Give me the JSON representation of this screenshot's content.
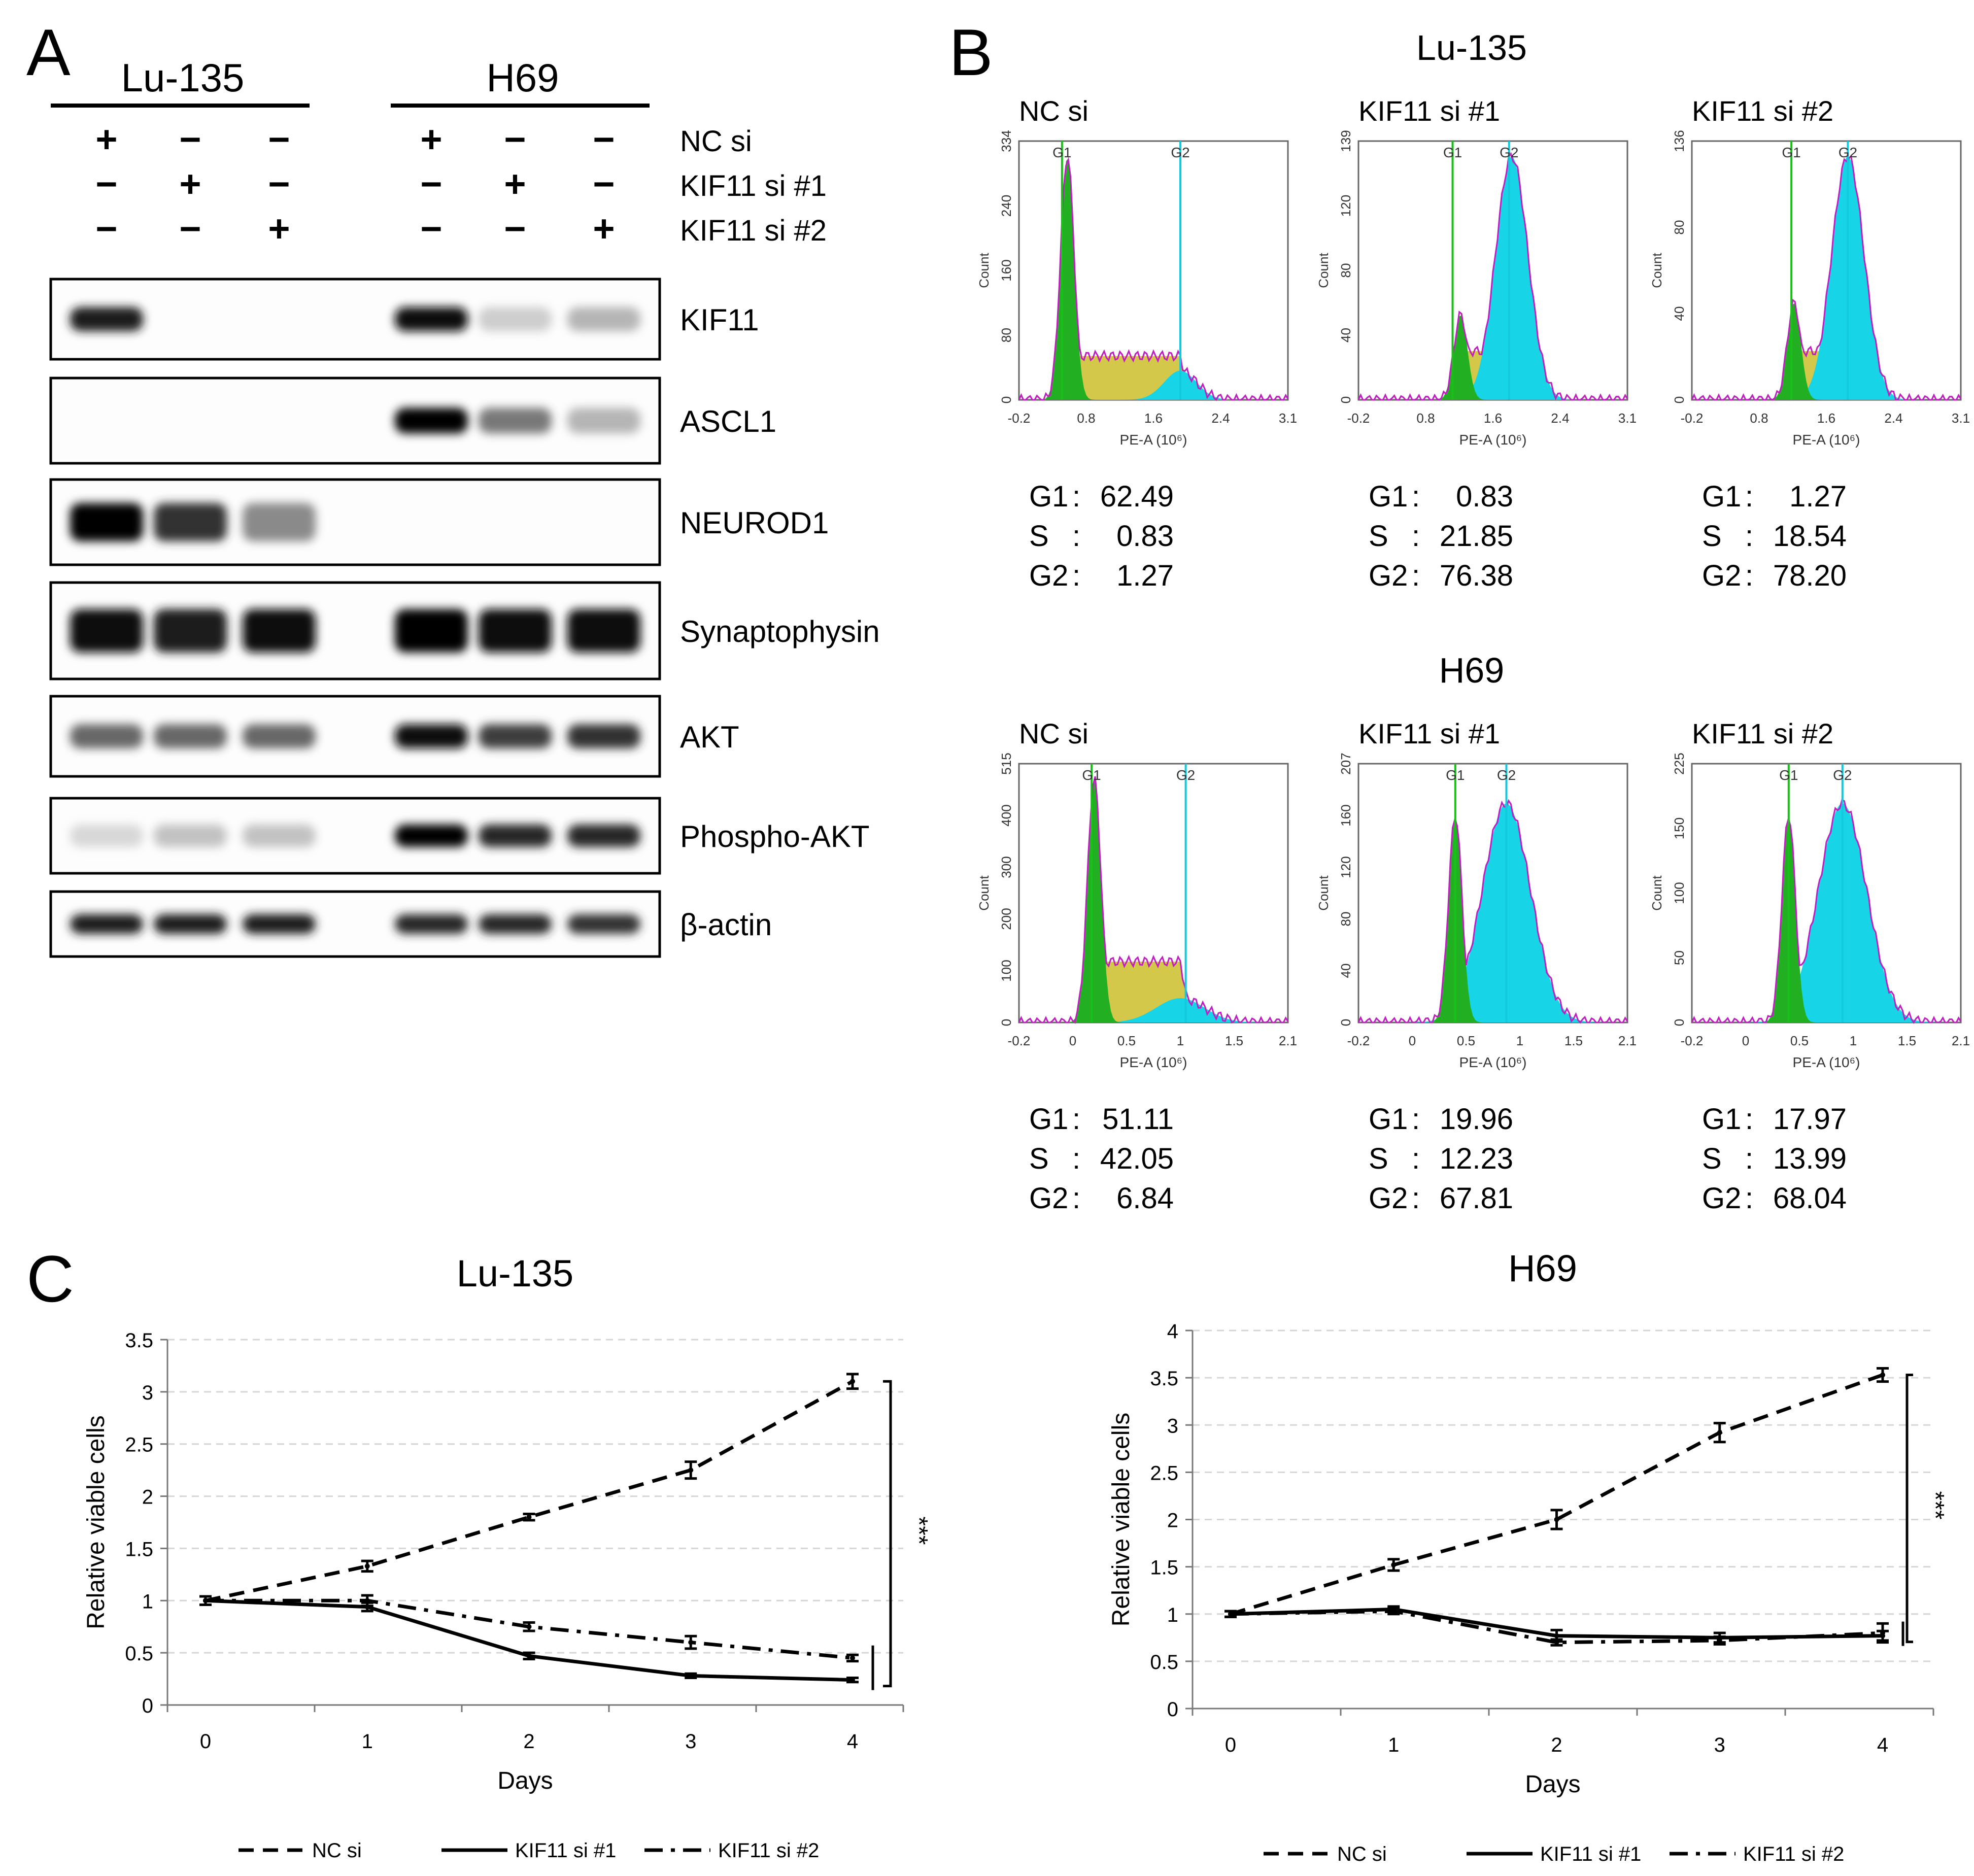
{
  "panelA": {
    "letter": "A",
    "cell_lines": [
      "Lu-135",
      "H69"
    ],
    "treatments": [
      {
        "label": "NC si",
        "signs": [
          "+",
          "−",
          "−",
          "+",
          "−",
          "−"
        ]
      },
      {
        "label": "KIF11 si #1",
        "signs": [
          "−",
          "+",
          "−",
          "−",
          "+",
          "−"
        ]
      },
      {
        "label": "KIF11 si #2",
        "signs": [
          "−",
          "−",
          "+",
          "−",
          "−",
          "+"
        ]
      }
    ],
    "blots": [
      {
        "label": "KIF11",
        "intensity": [
          0.9,
          0.0,
          0.0,
          0.95,
          0.25,
          0.35
        ]
      },
      {
        "label": "ASCL1",
        "intensity": [
          0.0,
          0.0,
          0.0,
          1.0,
          0.55,
          0.35
        ]
      },
      {
        "label": "NEUROD1",
        "intensity": [
          1.0,
          0.8,
          0.5,
          0.0,
          0.0,
          0.0
        ]
      },
      {
        "label": "Synaptophysin",
        "intensity": [
          0.95,
          0.9,
          0.95,
          1.0,
          0.95,
          0.95
        ]
      },
      {
        "label": "AKT",
        "intensity": [
          0.6,
          0.6,
          0.6,
          0.95,
          0.75,
          0.8
        ]
      },
      {
        "label": "Phospho-AKT",
        "intensity": [
          0.2,
          0.3,
          0.3,
          1.0,
          0.85,
          0.85
        ]
      },
      {
        "label": "β-actin",
        "intensity": [
          0.9,
          0.9,
          0.9,
          0.85,
          0.85,
          0.8
        ]
      }
    ]
  },
  "panelB": {
    "letter": "B",
    "rows": [
      {
        "title": "Lu-135",
        "xticks": [
          "-0.2",
          "0.8",
          "1.6",
          "2.4",
          "3.1"
        ],
        "xaxis_label": "PE-A (10⁶)",
        "yaxis_label": "Count",
        "hists": [
          {
            "title": "NC si",
            "ymax": "334",
            "yticks": [
              "0",
              "80",
              "160",
              "240",
              "334"
            ],
            "g1": "G1",
            "g2": "G2",
            "stats": {
              "G1": "62.49",
              "S": "0.83",
              "G2": "1.27"
            }
          },
          {
            "title": "KIF11 si #1",
            "ymax": "139",
            "yticks": [
              "0",
              "40",
              "80",
              "120",
              "139"
            ],
            "g1": "G1",
            "g2": "G2",
            "stats": {
              "G1": "0.83",
              "S": "21.85",
              "G2": "76.38"
            }
          },
          {
            "title": "KIF11 si #2",
            "ymax": "136",
            "yticks": [
              "0",
              "40",
              "80",
              "136"
            ],
            "g1": "G1",
            "g2": "G2",
            "stats": {
              "G1": "1.27",
              "S": "18.54",
              "G2": "78.20"
            }
          }
        ]
      },
      {
        "title": "H69",
        "xticks": [
          "-0.2",
          "0",
          "0.5",
          "1",
          "1.5",
          "2.1"
        ],
        "xaxis_label": "PE-A (10⁶)",
        "yaxis_label": "Count",
        "hists": [
          {
            "title": "NC si",
            "ymax": "515",
            "yticks": [
              "0",
              "100",
              "200",
              "300",
              "400",
              "515"
            ],
            "g1": "G1",
            "g2": "G2",
            "stats": {
              "G1": "51.11",
              "S": "42.05",
              "G2": "6.84"
            }
          },
          {
            "title": "KIF11 si #1",
            "ymax": "207",
            "yticks": [
              "0",
              "40",
              "80",
              "120",
              "160",
              "207"
            ],
            "g1": "G1",
            "g2": "G2",
            "stats": {
              "G1": "19.96",
              "S": "12.23",
              "G2": "67.81"
            }
          },
          {
            "title": "KIF11 si #2",
            "ymax": "225",
            "yticks": [
              "0",
              "50",
              "100",
              "150",
              "225"
            ],
            "g1": "G1",
            "g2": "G2",
            "stats": {
              "G1": "17.97",
              "S": "13.99",
              "G2": "68.04"
            }
          }
        ]
      }
    ]
  },
  "panelC": {
    "letter": "C",
    "significance": "***",
    "legend": [
      "NC si",
      "KIF11 si #1",
      "KIF11 si #2"
    ]
  },
  "chart_data": [
    {
      "type": "line",
      "title": "Lu-135",
      "xlabel": "Days",
      "ylabel": "Relative viable cells",
      "x": [
        0,
        1,
        2,
        3,
        4
      ],
      "ylim": [
        0,
        3.5
      ],
      "yticks": [
        0,
        0.5,
        1,
        1.5,
        2,
        2.5,
        3,
        3.5
      ],
      "grid": true,
      "legend_position": "bottom",
      "series": [
        {
          "name": "NC si",
          "values": [
            1.0,
            1.33,
            1.8,
            2.25,
            3.1
          ],
          "errors": [
            0.04,
            0.05,
            0.03,
            0.08,
            0.07
          ],
          "style": "dashed"
        },
        {
          "name": "KIF11 si #1",
          "values": [
            1.0,
            0.94,
            0.47,
            0.28,
            0.24
          ],
          "errors": [
            0.04,
            0.04,
            0.03,
            0.02,
            0.02
          ],
          "style": "solid"
        },
        {
          "name": "KIF11 si #2",
          "values": [
            1.0,
            1.0,
            0.75,
            0.6,
            0.45
          ],
          "errors": [
            0.04,
            0.05,
            0.04,
            0.06,
            0.03
          ],
          "style": "dashdot"
        }
      ]
    },
    {
      "type": "line",
      "title": "H69",
      "xlabel": "Days",
      "ylabel": "Relative viable cells",
      "x": [
        0,
        1,
        2,
        3,
        4
      ],
      "ylim": [
        0,
        4
      ],
      "yticks": [
        0,
        0.5,
        1,
        1.5,
        2,
        2.5,
        3,
        3.5,
        4
      ],
      "grid": true,
      "legend_position": "bottom",
      "series": [
        {
          "name": "NC si",
          "values": [
            1.0,
            1.52,
            2.0,
            2.92,
            3.53
          ],
          "errors": [
            0.03,
            0.06,
            0.1,
            0.1,
            0.07
          ],
          "style": "dashed"
        },
        {
          "name": "KIF11 si #1",
          "values": [
            1.0,
            1.05,
            0.77,
            0.75,
            0.77
          ],
          "errors": [
            0.03,
            0.03,
            0.06,
            0.05,
            0.05
          ],
          "style": "solid"
        },
        {
          "name": "KIF11 si #2",
          "values": [
            1.0,
            1.03,
            0.7,
            0.72,
            0.8
          ],
          "errors": [
            0.03,
            0.03,
            0.03,
            0.04,
            0.1
          ],
          "style": "dashdot"
        }
      ]
    }
  ]
}
